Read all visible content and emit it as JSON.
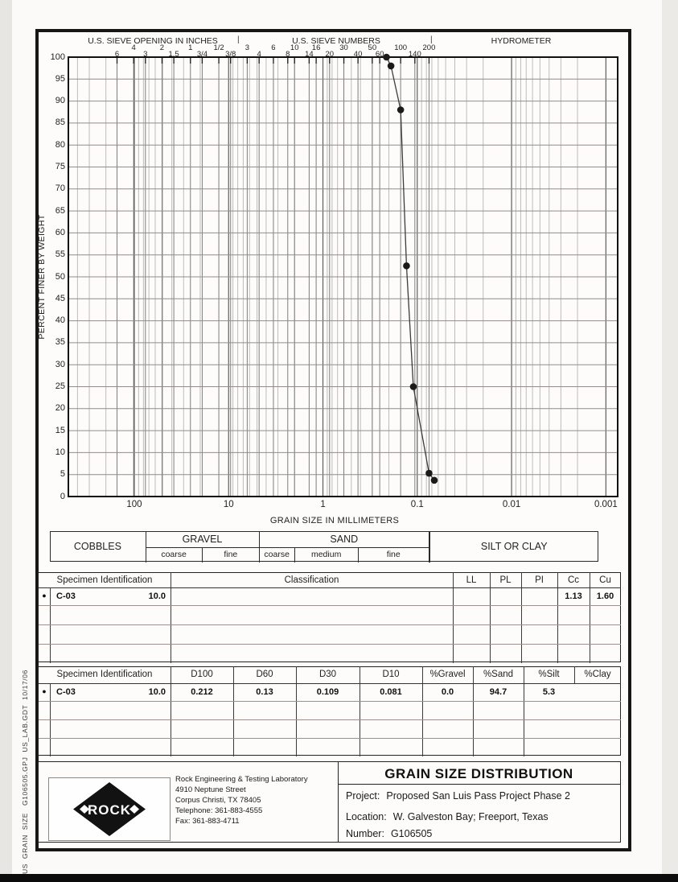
{
  "top_axis": {
    "sections": [
      {
        "label": "U.S. SIEVE OPENING IN INCHES"
      },
      {
        "label": "U.S. SIEVE NUMBERS"
      },
      {
        "label": "HYDROMETER"
      }
    ],
    "separator": "|",
    "sieves": [
      {
        "label": "6",
        "mm": 152.4
      },
      {
        "label": "4",
        "mm": 101.6
      },
      {
        "label": "3",
        "mm": 76.2
      },
      {
        "label": "2",
        "mm": 50.8
      },
      {
        "label": "1.5",
        "mm": 38.1
      },
      {
        "label": "1",
        "mm": 25.4
      },
      {
        "label": "3/4",
        "mm": 19.05
      },
      {
        "label": "1/2",
        "mm": 12.7
      },
      {
        "label": "3/8",
        "mm": 9.525
      },
      {
        "label": "3",
        "mm": 6.35
      },
      {
        "label": "4",
        "mm": 4.75
      },
      {
        "label": "6",
        "mm": 3.35
      },
      {
        "label": "8",
        "mm": 2.36
      },
      {
        "label": "10",
        "mm": 2.0
      },
      {
        "label": "14",
        "mm": 1.4
      },
      {
        "label": "16",
        "mm": 1.18
      },
      {
        "label": "20",
        "mm": 0.85
      },
      {
        "label": "30",
        "mm": 0.6
      },
      {
        "label": "40",
        "mm": 0.425
      },
      {
        "label": "50",
        "mm": 0.3
      },
      {
        "label": "60",
        "mm": 0.25
      },
      {
        "label": "100",
        "mm": 0.15
      },
      {
        "label": "140",
        "mm": 0.106
      },
      {
        "label": "200",
        "mm": 0.075
      }
    ]
  },
  "chart_data": {
    "type": "line",
    "title": "",
    "xlabel": "GRAIN SIZE IN MILLIMETERS",
    "ylabel": "PERCENT FINER BY WEIGHT",
    "x_scale": "log",
    "x_ticks": [
      "100",
      "10",
      "1",
      "0.1",
      "0.01",
      "0.001"
    ],
    "xlim": [
      500,
      0.00075
    ],
    "ylim": [
      0,
      100
    ],
    "y_tick_step": 5,
    "grid": true,
    "series": [
      {
        "name": "C-03 10.0",
        "marker": "filled-circle",
        "points": [
          [
            0.212,
            100
          ],
          [
            0.19,
            98
          ],
          [
            0.15,
            88
          ],
          [
            0.13,
            52.5
          ],
          [
            0.11,
            25
          ],
          [
            0.075,
            5.3
          ],
          [
            0.066,
            3.7
          ]
        ]
      }
    ]
  },
  "size_bar": {
    "groups": [
      {
        "label": "COBBLES",
        "subs": [],
        "from_mm": null,
        "to_mm": 76.2
      },
      {
        "label": "GRAVEL",
        "subs": [
          "coarse",
          "fine"
        ],
        "from_mm": 76.2,
        "to_mm": 4.75,
        "sub_bounds_mm": [
          19.05
        ]
      },
      {
        "label": "SAND",
        "subs": [
          "coarse",
          "medium",
          "fine"
        ],
        "from_mm": 4.75,
        "to_mm": 0.075,
        "sub_bounds_mm": [
          2.0,
          0.425
        ]
      },
      {
        "label": "SILT OR CLAY",
        "subs": [],
        "from_mm": 0.075,
        "to_mm": null
      }
    ]
  },
  "params_table": {
    "headers": [
      "Specimen Identification",
      "Classification",
      "LL",
      "PL",
      "PI",
      "Cc",
      "Cu"
    ],
    "rows": [
      {
        "marker": "●",
        "specimen": "C-03",
        "depth": "10.0",
        "classification": "",
        "ll": "",
        "pl": "",
        "pi": "",
        "cc": "1.13",
        "cu": "1.60"
      }
    ],
    "empty_rows": 3
  },
  "gradation_table": {
    "headers": [
      "Specimen Identification",
      "D100",
      "D60",
      "D30",
      "D10",
      "%Gravel",
      "%Sand",
      "%Silt",
      "%Clay"
    ],
    "rows": [
      {
        "marker": "●",
        "specimen": "C-03",
        "depth": "10.0",
        "d100": "0.212",
        "d60": "0.13",
        "d30": "0.109",
        "d10": "0.081",
        "gravel": "0.0",
        "sand": "94.7",
        "silt_clay": "5.3"
      }
    ],
    "empty_rows": 3
  },
  "footer": {
    "title": "GRAIN SIZE DISTRIBUTION",
    "logo_text": "ROCK",
    "company": [
      "Rock Engineering & Testing Laboratory",
      "4910 Neptune Street",
      "Corpus Christi, TX 78405",
      "Telephone:  361-883-4555",
      "Fax:  361-883-4711"
    ],
    "project_label": "Project:",
    "project": "Proposed San Luis Pass Project Phase 2",
    "location_label": "Location:",
    "location": "W. Galveston Bay; Freeport, Texas",
    "number_label": "Number:",
    "number": "G106505"
  },
  "side_text": "US  GRAIN  SIZE   G106505.GPJ  US_LAB.GDT  10/17/06"
}
